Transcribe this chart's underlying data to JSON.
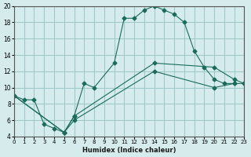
{
  "xlabel": "Humidex (Indice chaleur)",
  "bg_color": "#d6ecec",
  "line_color": "#1a6b5a",
  "grid_color": "#a0c8c8",
  "line1_x": [
    0,
    1,
    2,
    3,
    4,
    5,
    6,
    7,
    8,
    10,
    11,
    12,
    13,
    14,
    15,
    16,
    17,
    18,
    19,
    20,
    21,
    22
  ],
  "line1_y": [
    9,
    8.5,
    8.5,
    5.5,
    5,
    4.5,
    6.5,
    10.5,
    10,
    13,
    18.5,
    18.5,
    19.5,
    20,
    19.5,
    19,
    18,
    14.5,
    12.5,
    11,
    10.5,
    10.5
  ],
  "line2_x": [
    0,
    5,
    6,
    14,
    20,
    22,
    23
  ],
  "line2_y": [
    9,
    4.5,
    6,
    12,
    10,
    10.5,
    10.5
  ],
  "line3_x": [
    0,
    5,
    6,
    14,
    20,
    22,
    23
  ],
  "line3_y": [
    9,
    4.5,
    6.5,
    13,
    12.5,
    11,
    10.5
  ],
  "xlim": [
    0,
    23
  ],
  "ylim": [
    4,
    20
  ],
  "xticks": [
    0,
    1,
    2,
    3,
    4,
    5,
    6,
    7,
    8,
    9,
    10,
    11,
    12,
    13,
    14,
    15,
    16,
    17,
    18,
    19,
    20,
    21,
    22,
    23
  ],
  "yticks": [
    4,
    6,
    8,
    10,
    12,
    14,
    16,
    18,
    20
  ]
}
